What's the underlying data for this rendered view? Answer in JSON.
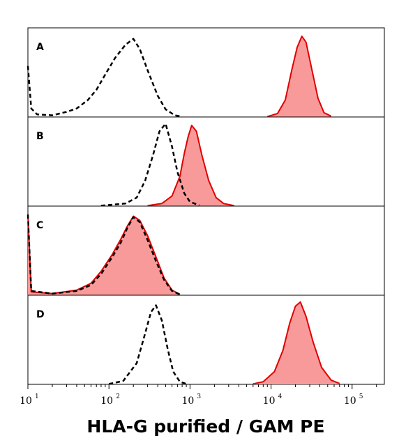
{
  "chart_data": {
    "type": "histogram",
    "xlabel": "HLA-G purified / GAM PE",
    "x_scale": "log",
    "xlim": [
      10,
      250000
    ],
    "x_ticks": [
      {
        "base": "10",
        "exp": "1",
        "value": 10
      },
      {
        "base": "10",
        "exp": "2",
        "value": 100
      },
      {
        "base": "10",
        "exp": "3",
        "value": 1000
      },
      {
        "base": "10",
        "exp": "4",
        "value": 10000
      },
      {
        "base": "10",
        "exp": "5",
        "value": 100000
      }
    ],
    "panels": [
      {
        "label": "A",
        "series": [
          {
            "style": "dashed-black-control",
            "color": "#000000",
            "points": [
              [
                10,
                0.6
              ],
              [
                11,
                0.1
              ],
              [
                13,
                0.03
              ],
              [
                20,
                0.02
              ],
              [
                30,
                0.06
              ],
              [
                40,
                0.1
              ],
              [
                55,
                0.2
              ],
              [
                70,
                0.32
              ],
              [
                90,
                0.5
              ],
              [
                120,
                0.7
              ],
              [
                160,
                0.85
              ],
              [
                200,
                0.92
              ],
              [
                240,
                0.8
              ],
              [
                300,
                0.55
              ],
              [
                400,
                0.25
              ],
              [
                500,
                0.09
              ],
              [
                650,
                0.02
              ],
              [
                800,
                0.005
              ]
            ]
          },
          {
            "style": "filled-red",
            "color": "#e00000",
            "fill": "#f99a9a",
            "points": [
              [
                9000,
                0.005
              ],
              [
                12000,
                0.04
              ],
              [
                15000,
                0.2
              ],
              [
                18000,
                0.55
              ],
              [
                21000,
                0.82
              ],
              [
                24000,
                0.95
              ],
              [
                27000,
                0.88
              ],
              [
                32000,
                0.55
              ],
              [
                38000,
                0.22
              ],
              [
                45000,
                0.05
              ],
              [
                55000,
                0.01
              ]
            ]
          }
        ]
      },
      {
        "label": "B",
        "series": [
          {
            "style": "dashed-black-control",
            "color": "#000000",
            "points": [
              [
                80,
                0.005
              ],
              [
                160,
                0.03
              ],
              [
                220,
                0.1
              ],
              [
                280,
                0.3
              ],
              [
                350,
                0.6
              ],
              [
                420,
                0.88
              ],
              [
                500,
                0.97
              ],
              [
                600,
                0.7
              ],
              [
                700,
                0.4
              ],
              [
                850,
                0.15
              ],
              [
                1000,
                0.05
              ],
              [
                1300,
                0.01
              ]
            ]
          },
          {
            "style": "filled-red",
            "color": "#e00000",
            "fill": "#f99a9a",
            "points": [
              [
                300,
                0.005
              ],
              [
                450,
                0.03
              ],
              [
                600,
                0.12
              ],
              [
                750,
                0.35
              ],
              [
                850,
                0.62
              ],
              [
                950,
                0.82
              ],
              [
                1050,
                0.95
              ],
              [
                1200,
                0.88
              ],
              [
                1400,
                0.6
              ],
              [
                1700,
                0.3
              ],
              [
                2100,
                0.1
              ],
              [
                2600,
                0.03
              ],
              [
                3500,
                0.005
              ]
            ]
          }
        ]
      },
      {
        "label": "C",
        "series": [
          {
            "style": "dashed-black-control",
            "color": "#000000",
            "points": [
              [
                10,
                0.95
              ],
              [
                11,
                0.05
              ],
              [
                20,
                0.02
              ],
              [
                40,
                0.05
              ],
              [
                60,
                0.12
              ],
              [
                80,
                0.25
              ],
              [
                110,
                0.45
              ],
              [
                140,
                0.62
              ],
              [
                170,
                0.8
              ],
              [
                200,
                0.92
              ],
              [
                240,
                0.86
              ],
              [
                300,
                0.65
              ],
              [
                380,
                0.4
              ],
              [
                480,
                0.18
              ],
              [
                600,
                0.05
              ],
              [
                750,
                0.01
              ]
            ]
          },
          {
            "style": "filled-red",
            "color": "#e00000",
            "fill": "#f99a9a",
            "points": [
              [
                10,
                0.95
              ],
              [
                11,
                0.04
              ],
              [
                20,
                0.02
              ],
              [
                40,
                0.06
              ],
              [
                60,
                0.14
              ],
              [
                80,
                0.28
              ],
              [
                110,
                0.48
              ],
              [
                140,
                0.66
              ],
              [
                170,
                0.82
              ],
              [
                200,
                0.93
              ],
              [
                240,
                0.88
              ],
              [
                300,
                0.7
              ],
              [
                380,
                0.45
              ],
              [
                480,
                0.2
              ],
              [
                600,
                0.06
              ],
              [
                750,
                0.01
              ]
            ]
          }
        ]
      },
      {
        "label": "D",
        "series": [
          {
            "style": "dashed-black-control",
            "color": "#000000",
            "points": [
              [
                100,
                0.005
              ],
              [
                150,
                0.04
              ],
              [
                220,
                0.25
              ],
              [
                280,
                0.6
              ],
              [
                330,
                0.85
              ],
              [
                380,
                0.93
              ],
              [
                450,
                0.75
              ],
              [
                530,
                0.42
              ],
              [
                620,
                0.15
              ],
              [
                750,
                0.03
              ],
              [
                900,
                0.005
              ]
            ]
          },
          {
            "style": "filled-red",
            "color": "#e00000",
            "fill": "#f99a9a",
            "points": [
              [
                6000,
                0.005
              ],
              [
                8000,
                0.03
              ],
              [
                11000,
                0.15
              ],
              [
                14000,
                0.4
              ],
              [
                17000,
                0.72
              ],
              [
                20000,
                0.92
              ],
              [
                23000,
                0.97
              ],
              [
                27000,
                0.8
              ],
              [
                33000,
                0.5
              ],
              [
                42000,
                0.2
              ],
              [
                55000,
                0.05
              ],
              [
                70000,
                0.01
              ]
            ]
          }
        ]
      }
    ]
  }
}
